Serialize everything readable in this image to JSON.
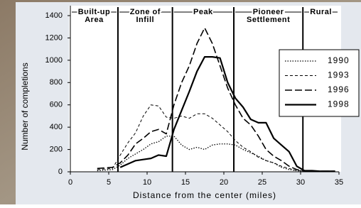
{
  "chart_data": {
    "type": "line",
    "y_label": "Number of completions",
    "x_label": "Distance from the center (miles)",
    "x": [
      3.5,
      5.5,
      6.5,
      7.5,
      8.5,
      9.5,
      10.5,
      11.5,
      12.5,
      13.5,
      14.5,
      15.5,
      16.5,
      17.5,
      18.5,
      19.5,
      20.5,
      21.5,
      22.5,
      23.5,
      24.5,
      25.5,
      26.5,
      27.5,
      28.5,
      29.5,
      30.5,
      31.5,
      32.5,
      33.5,
      34.5
    ],
    "series": [
      {
        "name": "1990",
        "color": "#000000",
        "dash": "1.5,2",
        "width": 1.3,
        "values": [
          10,
          20,
          60,
          120,
          160,
          200,
          250,
          270,
          320,
          320,
          240,
          200,
          220,
          200,
          240,
          250,
          250,
          240,
          200,
          170,
          140,
          100,
          80,
          40,
          20,
          10,
          5,
          5,
          5,
          5,
          5
        ]
      },
      {
        "name": "1993",
        "color": "#000000",
        "dash": "4,3",
        "width": 1,
        "values": [
          20,
          30,
          150,
          260,
          350,
          500,
          600,
          590,
          490,
          480,
          500,
          480,
          520,
          520,
          480,
          420,
          360,
          280,
          220,
          180,
          130,
          100,
          80,
          50,
          30,
          10,
          10,
          5,
          5,
          5,
          5
        ]
      },
      {
        "name": "1996",
        "color": "#000000",
        "dash": "10,4",
        "width": 1.6,
        "values": [
          30,
          40,
          80,
          150,
          250,
          300,
          360,
          380,
          340,
          600,
          800,
          950,
          1150,
          1290,
          1150,
          950,
          750,
          600,
          480,
          420,
          320,
          200,
          140,
          100,
          50,
          20,
          10,
          5,
          5,
          5,
          5
        ]
      },
      {
        "name": "1998",
        "color": "#000000",
        "dash": "",
        "width": 2.2,
        "values": [
          null,
          null,
          40,
          70,
          100,
          110,
          120,
          150,
          140,
          380,
          550,
          720,
          900,
          1030,
          1030,
          1020,
          800,
          660,
          580,
          470,
          440,
          440,
          300,
          240,
          180,
          50,
          10,
          10,
          5,
          5,
          5
        ]
      }
    ],
    "xlim": [
      0,
      35
    ],
    "xticks": [
      0,
      5,
      10,
      15,
      20,
      25,
      30,
      35
    ],
    "ylim": [
      0,
      1400
    ],
    "yticks": [
      0,
      200,
      400,
      600,
      800,
      1000,
      1200,
      1400
    ],
    "zone_boundaries": [
      6.2,
      13.3,
      21.3,
      30.3
    ],
    "zones": [
      [
        "Built-up",
        "Area"
      ],
      [
        "Zone of",
        "Infill"
      ],
      [
        "Peak"
      ],
      [
        "Pioneer",
        "Settlement"
      ],
      [
        "Rural"
      ]
    ],
    "legend": "right"
  }
}
